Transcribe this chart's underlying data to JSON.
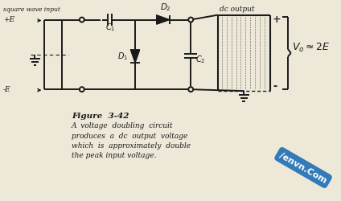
{
  "bg_color": "#ede8d8",
  "line_color": "#1a1a1a",
  "title_text": "Figure  3-42",
  "caption_lines": [
    "A  voltage  doubling  circuit",
    "produces  a  dc  output  voltage",
    "which  is  approximately  double",
    "the peak input voltage."
  ],
  "sq_wave_label": "square wave input",
  "dc_output_label": "dc output",
  "plus_E_label": "+E",
  "minus_E_label": "-E",
  "Vo_label": "$V_o \\approx 2E$",
  "C1_label": "$C_1$",
  "C2_label": "$C_2$",
  "D1_label": "$D_1$",
  "D2_label": "$D_2$",
  "plus_sign": "+",
  "minus_sign": "-"
}
